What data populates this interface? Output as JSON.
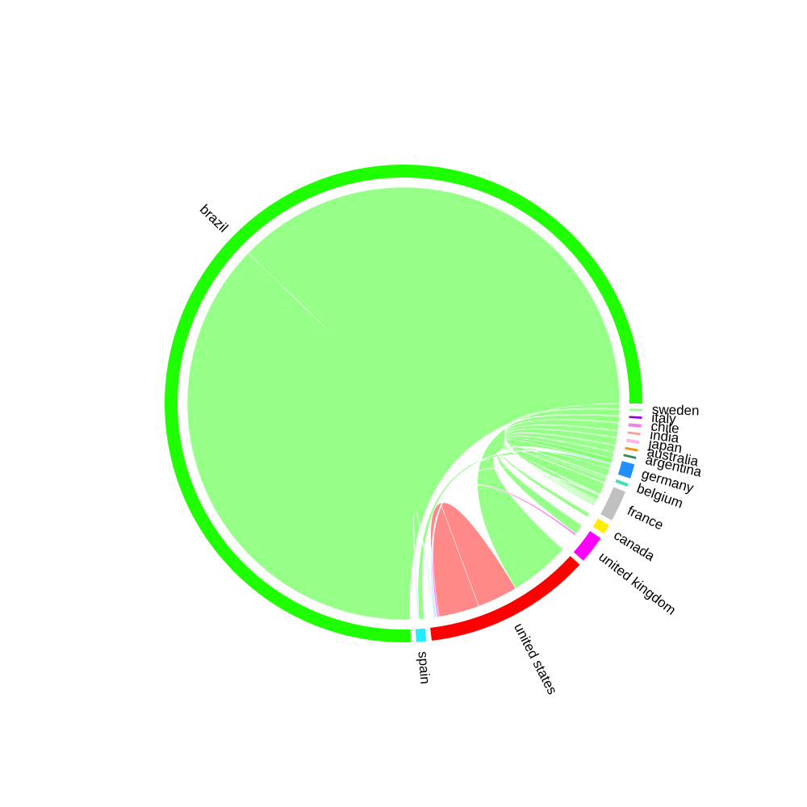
{
  "chart_data": {
    "type": "chord",
    "title": "",
    "sectors": [
      {
        "name": "brazil",
        "value": 1000,
        "color": "#1EFF00"
      },
      {
        "name": "spain",
        "value": 9,
        "color": "#22EEFF"
      },
      {
        "name": "united states",
        "value": 150,
        "color": "#FF0000"
      },
      {
        "name": "united kingdom",
        "value": 25,
        "color": "#FF00FF"
      },
      {
        "name": "canada",
        "value": 9,
        "color": "#FFEE00"
      },
      {
        "name": "france",
        "value": 28,
        "color": "#C0C0C0"
      },
      {
        "name": "belgium",
        "value": 3,
        "color": "#40E0C0"
      },
      {
        "name": "germany",
        "value": 13,
        "color": "#1E90FF"
      },
      {
        "name": "argentina",
        "value": 2,
        "color": "#2E8B57"
      },
      {
        "name": "australia",
        "value": 2,
        "color": "#FF8C00"
      },
      {
        "name": "japan",
        "value": 3,
        "color": "#FFB6E1"
      },
      {
        "name": "india",
        "value": 2,
        "color": "#FF9999"
      },
      {
        "name": "chile",
        "value": 3,
        "color": "#EE82EE"
      },
      {
        "name": "italy",
        "value": 2,
        "color": "#9400D3"
      },
      {
        "name": "sweden",
        "value": 2,
        "color": "#98FB98"
      }
    ],
    "links": [
      {
        "from": "brazil",
        "to": "brazil",
        "value": 500
      },
      {
        "from": "brazil",
        "to": "united states",
        "value": 60
      },
      {
        "from": "united states",
        "to": "united states",
        "value": 40
      },
      {
        "from": "brazil",
        "to": "spain",
        "value": 5
      },
      {
        "from": "brazil",
        "to": "united kingdom",
        "value": 10
      },
      {
        "from": "brazil",
        "to": "canada",
        "value": 4
      },
      {
        "from": "brazil",
        "to": "france",
        "value": 12
      },
      {
        "from": "brazil",
        "to": "belgium",
        "value": 1
      },
      {
        "from": "brazil",
        "to": "germany",
        "value": 5
      },
      {
        "from": "brazil",
        "to": "argentina",
        "value": 1
      },
      {
        "from": "brazil",
        "to": "australia",
        "value": 1
      },
      {
        "from": "brazil",
        "to": "japan",
        "value": 1
      },
      {
        "from": "brazil",
        "to": "india",
        "value": 1
      },
      {
        "from": "brazil",
        "to": "chile",
        "value": 1
      },
      {
        "from": "brazil",
        "to": "italy",
        "value": 1
      },
      {
        "from": "brazil",
        "to": "sweden",
        "value": 1
      },
      {
        "from": "united kingdom",
        "to": "united states",
        "value": 2
      },
      {
        "from": "france",
        "to": "united states",
        "value": 1
      },
      {
        "from": "germany",
        "to": "united states",
        "value": 1
      },
      {
        "from": "spain",
        "to": "united states",
        "value": 1
      }
    ],
    "legend": "none",
    "grid": false
  }
}
